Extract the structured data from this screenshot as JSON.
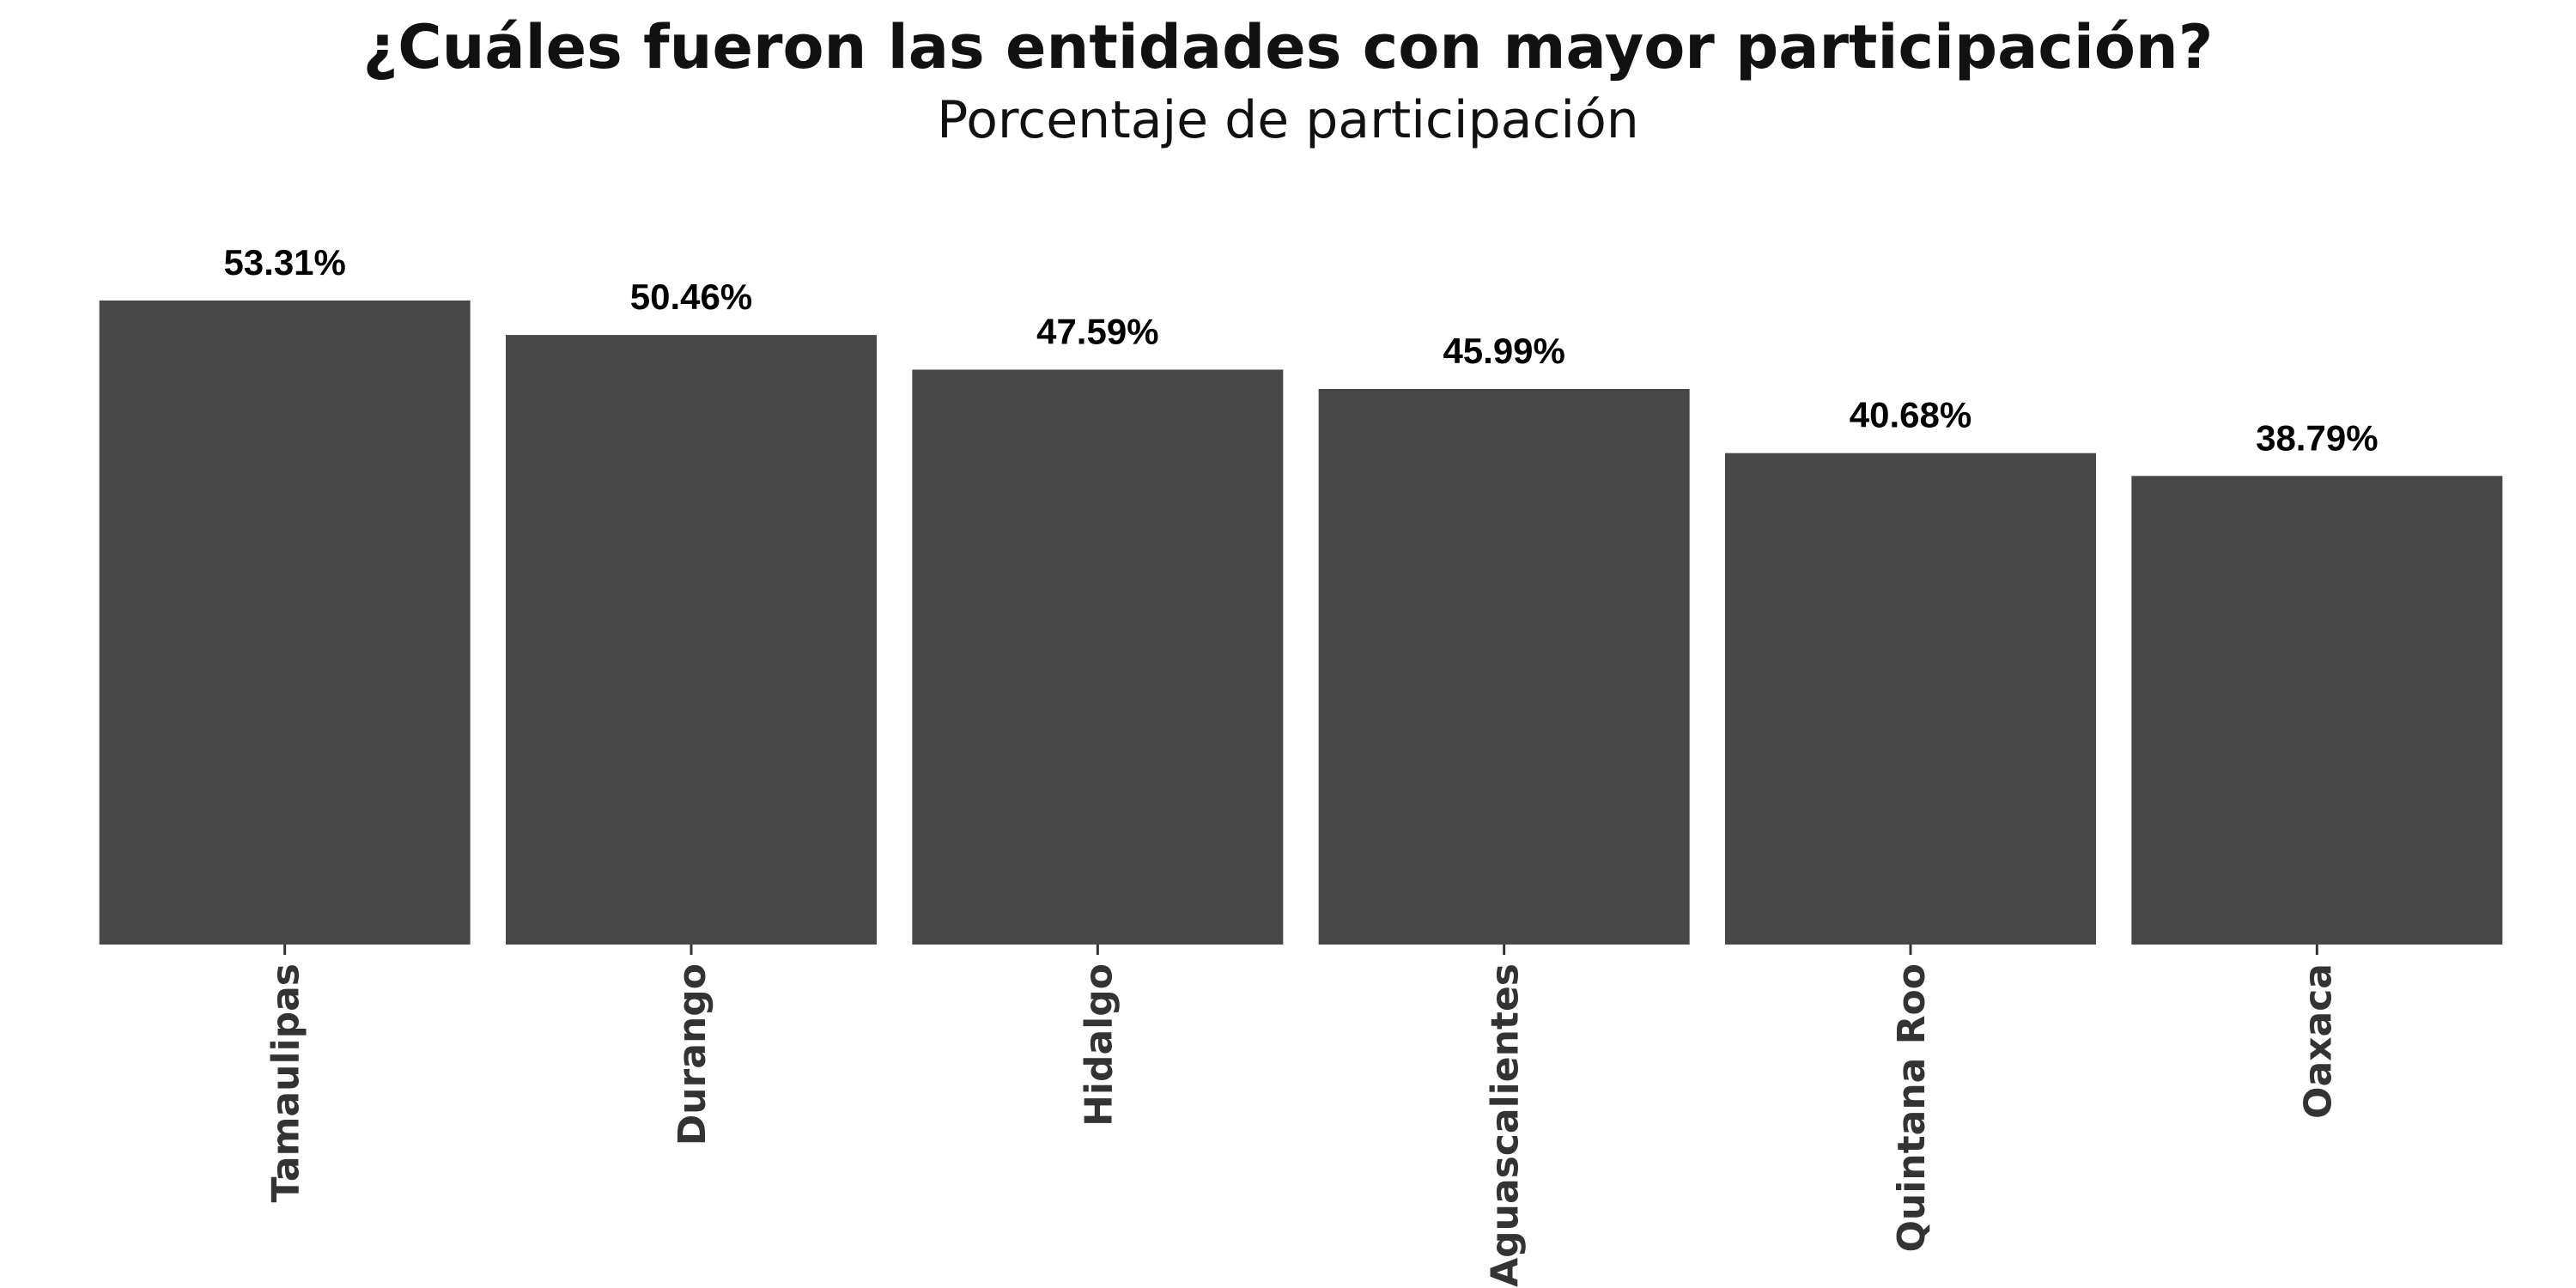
{
  "title": "¿Cuáles fueron las entidades con mayor participación?",
  "subtitle": "Porcentaje de participación",
  "colors": {
    "bar": "#474747",
    "value_label": "#000000",
    "tick_label": "#333333",
    "background": "#ffffff"
  },
  "chart_data": {
    "type": "bar",
    "title": "¿Cuáles fueron las entidades con mayor participación?",
    "subtitle": "Porcentaje de participación",
    "categories": [
      "Tamaulipas",
      "Durango",
      "Hidalgo",
      "Aguascalientes",
      "Quintana Roo",
      "Oaxaca"
    ],
    "values": [
      53.31,
      50.46,
      47.59,
      45.99,
      40.68,
      38.79
    ],
    "value_labels": [
      "53.31%",
      "50.46%",
      "47.59%",
      "45.99%",
      "40.68%",
      "38.79%"
    ],
    "xlabel": "",
    "ylabel": "",
    "ylim": [
      0,
      53.31
    ],
    "y_axis_shown": false,
    "grid": false,
    "legend": "none",
    "x_tick_label_rotation": "vertical"
  }
}
